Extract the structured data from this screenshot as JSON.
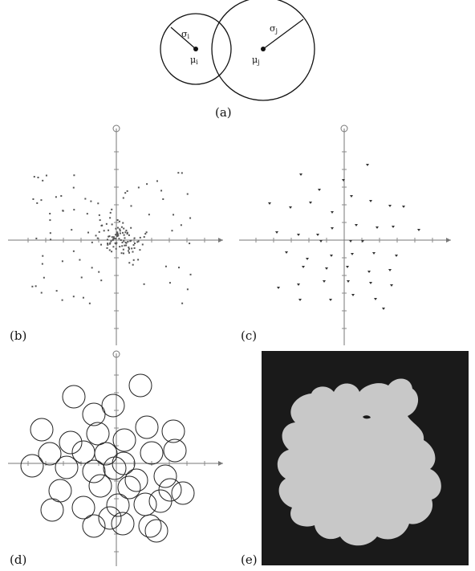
{
  "labels": {
    "a": "(a)",
    "b": "(b)",
    "c": "(c)",
    "d": "(d)",
    "e": "(e)"
  },
  "panel_a": {
    "sigma_i": "σ",
    "sigma_i_sub": "i",
    "mu_i": "μ",
    "mu_i_sub": "i",
    "sigma_j": "σ",
    "sigma_j_sub": "j",
    "mu_j": "μ",
    "mu_j_sub": "j"
  },
  "colors": {
    "axis": "#777777",
    "points": "#555555",
    "circles": "#222222",
    "mask_background": "#1a1a1a",
    "mask_shape": "#c8c8c8"
  }
}
